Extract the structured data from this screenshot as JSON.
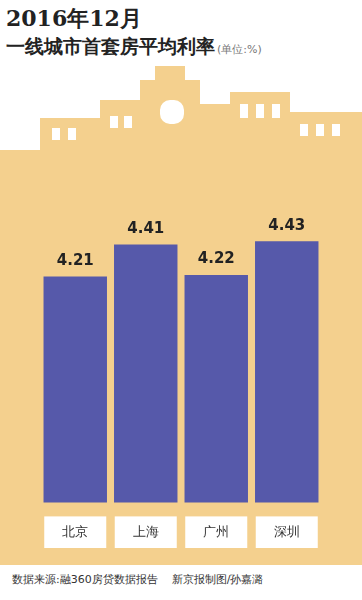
{
  "chart_data": {
    "type": "bar",
    "title": "2016年12月",
    "subtitle": "一线城市首套房平均利率",
    "ylabel": "(单位:%)",
    "categories": [
      "北京",
      "上海",
      "广州",
      "深圳"
    ],
    "values": [
      4.21,
      4.41,
      4.22,
      4.43
    ],
    "color": "#5659aa",
    "ylim": [
      2.8,
      5.0
    ],
    "grid": false,
    "data_labels": true,
    "tick_labels": "x",
    "annotations": [
      "数据来源:融360房贷数据报告",
      "新京报制图/孙嘉潞"
    ]
  }
}
